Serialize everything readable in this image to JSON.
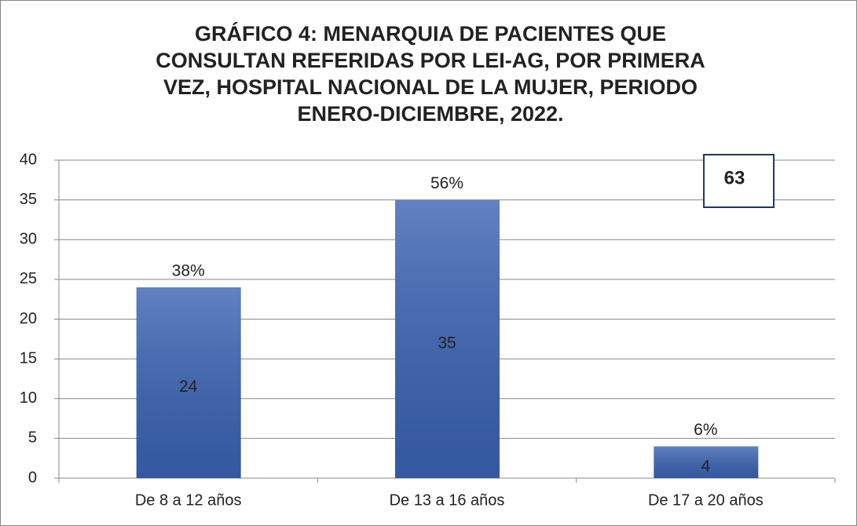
{
  "chart_data": {
    "type": "bar",
    "title": [
      "GRÁFICO 4: MENARQUIA DE PACIENTES QUE",
      "CONSULTAN REFERIDAS POR LEI-AG, POR PRIMERA",
      "VEZ, HOSPITAL NACIONAL DE LA MUJER, PERIODO",
      "ENERO-DICIEMBRE, 2022."
    ],
    "categories": [
      "De 8 a 12 años",
      "De 13 a 16 años",
      "De 17 a 20 años"
    ],
    "values": [
      24,
      35,
      4
    ],
    "percent_labels": [
      "38%",
      "56%",
      "6%"
    ],
    "annotation": "63",
    "color": "#3a62b3",
    "ylim": [
      0,
      40
    ],
    "yticks": [
      0,
      5,
      10,
      15,
      20,
      25,
      30,
      35,
      40
    ],
    "grid": true
  }
}
